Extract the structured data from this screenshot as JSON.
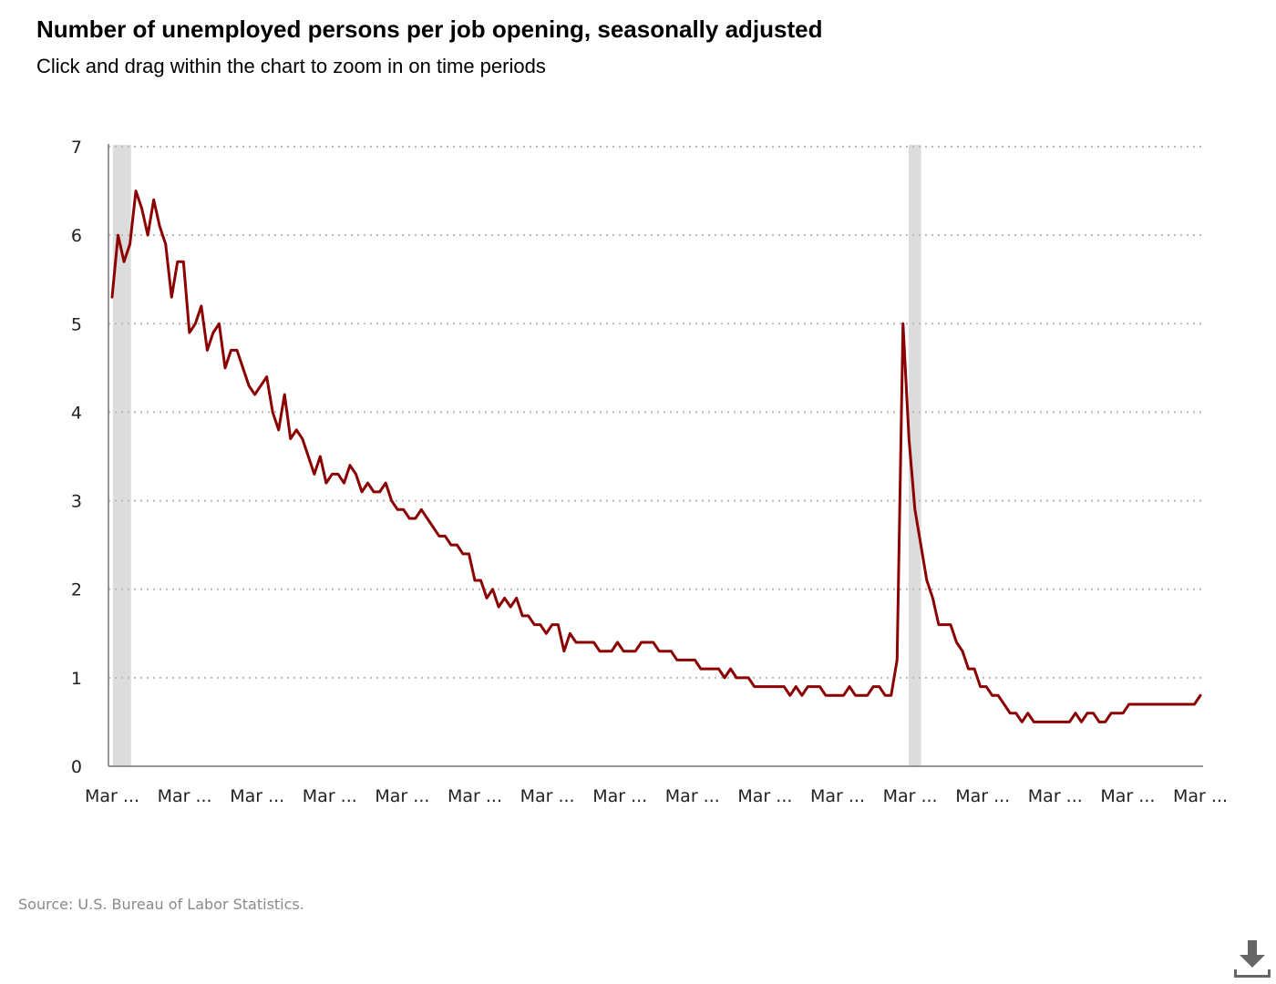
{
  "header": {
    "title": "Number of unemployed persons per job opening, seasonally adjusted",
    "subtitle": "Click and drag within the chart to zoom in on time periods"
  },
  "footer": {
    "source": "Source: U.S. Bureau of Labor Statistics."
  },
  "icons": {
    "download": "download-icon"
  },
  "colors": {
    "series": "#8b0000",
    "recession": "#dcdcdc",
    "grid": "#b8b8b8"
  },
  "chart_data": {
    "type": "line",
    "ylim": [
      0,
      7
    ],
    "y_ticks": [
      0,
      1,
      2,
      3,
      4,
      5,
      6,
      7
    ],
    "x_tick_labels": [
      "Mar ...",
      "Mar ...",
      "Mar ...",
      "Mar ...",
      "Mar ...",
      "Mar ...",
      "Mar ...",
      "Mar ...",
      "Mar ...",
      "Mar ...",
      "Mar ...",
      "Mar ...",
      "Mar ...",
      "Mar ...",
      "Mar ...",
      "Mar ..."
    ],
    "grid": "horizontal dotted",
    "recession_shading": [
      {
        "start_tick": 0.01,
        "end_tick": 0.26
      },
      {
        "start_tick": 10.98,
        "end_tick": 11.15
      }
    ],
    "series": [
      {
        "values": [
          5.3,
          6.0,
          5.7,
          5.9,
          6.5,
          6.3,
          6.0,
          6.4,
          6.1,
          5.9,
          5.3,
          5.7,
          5.7,
          4.9,
          5.0,
          5.2,
          4.7,
          4.9,
          5.0,
          4.5,
          4.7,
          4.7,
          4.5,
          4.3,
          4.2,
          4.3,
          4.4,
          4.0,
          3.8,
          4.2,
          3.7,
          3.8,
          3.7,
          3.5,
          3.3,
          3.5,
          3.2,
          3.3,
          3.3,
          3.2,
          3.4,
          3.3,
          3.1,
          3.2,
          3.1,
          3.1,
          3.2,
          3.0,
          2.9,
          2.9,
          2.8,
          2.8,
          2.9,
          2.8,
          2.7,
          2.6,
          2.6,
          2.5,
          2.5,
          2.4,
          2.4,
          2.1,
          2.1,
          1.9,
          2.0,
          1.8,
          1.9,
          1.8,
          1.9,
          1.7,
          1.7,
          1.6,
          1.6,
          1.5,
          1.6,
          1.6,
          1.3,
          1.5,
          1.4,
          1.4,
          1.4,
          1.4,
          1.3,
          1.3,
          1.3,
          1.4,
          1.3,
          1.3,
          1.3,
          1.4,
          1.4,
          1.4,
          1.3,
          1.3,
          1.3,
          1.2,
          1.2,
          1.2,
          1.2,
          1.1,
          1.1,
          1.1,
          1.1,
          1.0,
          1.1,
          1.0,
          1.0,
          1.0,
          0.9,
          0.9,
          0.9,
          0.9,
          0.9,
          0.9,
          0.8,
          0.9,
          0.8,
          0.9,
          0.9,
          0.9,
          0.8,
          0.8,
          0.8,
          0.8,
          0.9,
          0.8,
          0.8,
          0.8,
          0.9,
          0.9,
          0.8,
          0.8,
          1.2,
          5.0,
          3.7,
          2.9,
          2.5,
          2.1,
          1.9,
          1.6,
          1.6,
          1.6,
          1.4,
          1.3,
          1.1,
          1.1,
          0.9,
          0.9,
          0.8,
          0.8,
          0.7,
          0.6,
          0.6,
          0.5,
          0.6,
          0.5,
          0.5,
          0.5,
          0.5,
          0.5,
          0.5,
          0.5,
          0.6,
          0.5,
          0.6,
          0.6,
          0.5,
          0.5,
          0.6,
          0.6,
          0.6,
          0.7,
          0.7,
          0.7,
          0.7,
          0.7,
          0.7,
          0.7,
          0.7,
          0.7,
          0.7,
          0.7,
          0.7,
          0.8
        ]
      }
    ]
  }
}
